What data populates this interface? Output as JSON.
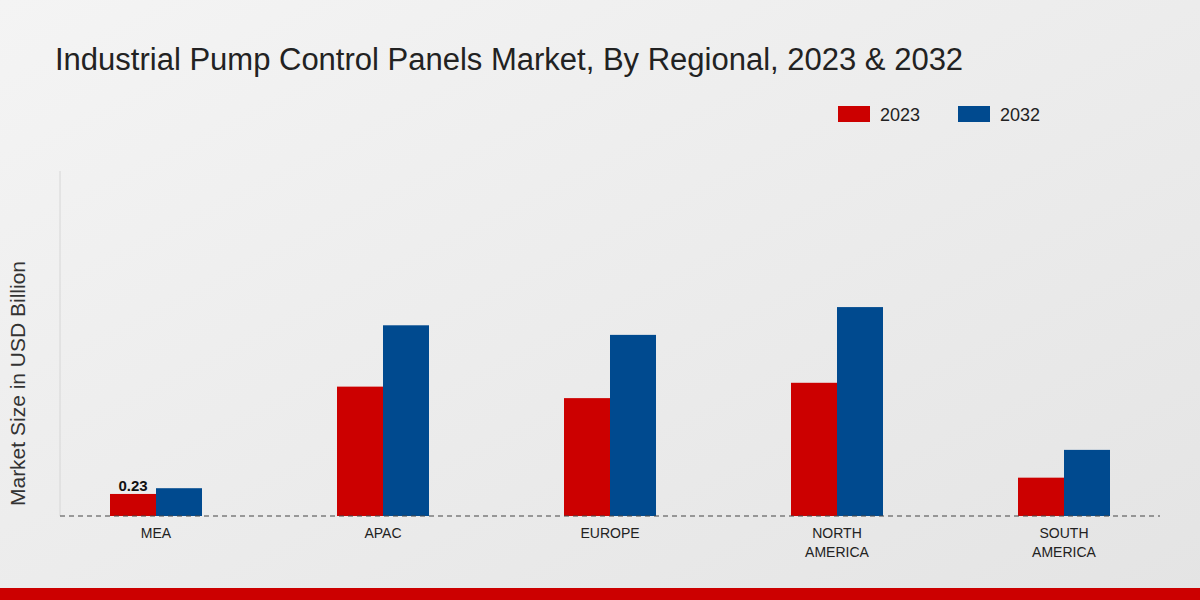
{
  "chart_data": {
    "type": "bar",
    "title": "Industrial Pump Control Panels Market, By Regional, 2023 & 2032",
    "y_label": "Market Size in USD Billion",
    "categories": [
      "MEA",
      "APAC",
      "EUROPE",
      "NORTH AMERICA",
      "SOUTH AMERICA"
    ],
    "series": [
      {
        "name": "2023",
        "color": "#cc0000",
        "values": [
          0.23,
          1.35,
          1.23,
          1.39,
          0.4
        ],
        "value_labels": [
          "0.23",
          null,
          null,
          null,
          null
        ]
      },
      {
        "name": "2032",
        "color": "#004a8f",
        "values": [
          0.29,
          1.99,
          1.89,
          2.18,
          0.69
        ]
      }
    ],
    "ylim": [
      0,
      3.6
    ],
    "tick_labels": "x",
    "legend": "top-right"
  }
}
